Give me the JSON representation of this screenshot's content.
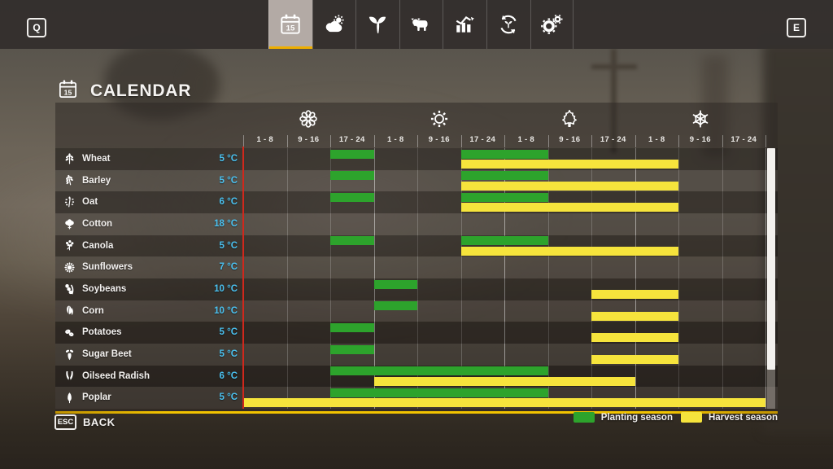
{
  "topbar": {
    "left_key": "Q",
    "right_key": "E",
    "tabs": [
      {
        "name": "calendar",
        "icon": "calendar-icon",
        "selected": true,
        "day": "15"
      },
      {
        "name": "weather",
        "icon": "weather-icon",
        "selected": false
      },
      {
        "name": "crops",
        "icon": "crops-icon",
        "selected": false
      },
      {
        "name": "animals",
        "icon": "animals-icon",
        "selected": false
      },
      {
        "name": "statistics",
        "icon": "statistics-icon",
        "selected": false
      },
      {
        "name": "rotation",
        "icon": "rotation-icon",
        "selected": false
      },
      {
        "name": "settings",
        "icon": "settings-icon",
        "selected": false
      }
    ]
  },
  "page": {
    "title": "CALENDAR",
    "title_icon": "calendar-icon",
    "title_icon_day": "15"
  },
  "calendar": {
    "seasons": [
      {
        "name": "spring",
        "icon": "spring-flower-icon"
      },
      {
        "name": "summer",
        "icon": "summer-sun-icon"
      },
      {
        "name": "autumn",
        "icon": "autumn-leaf-icon"
      },
      {
        "name": "winter",
        "icon": "winter-snowflake-icon"
      }
    ],
    "periods_per_season": [
      "1 - 8",
      "9 - 16",
      "17 - 24"
    ],
    "rows": [
      {
        "crop": "Wheat",
        "temp": "5 °C",
        "icon": "wheat-icon",
        "plant": [
          [
            3,
            3
          ],
          [
            6,
            7
          ]
        ],
        "harvest": [
          [
            6,
            10
          ]
        ]
      },
      {
        "crop": "Barley",
        "temp": "5 °C",
        "icon": "barley-icon",
        "plant": [
          [
            3,
            3
          ],
          [
            6,
            7
          ]
        ],
        "harvest": [
          [
            6,
            10
          ]
        ]
      },
      {
        "crop": "Oat",
        "temp": "6 °C",
        "icon": "oat-icon",
        "plant": [
          [
            3,
            3
          ],
          [
            6,
            7
          ]
        ],
        "harvest": [
          [
            6,
            10
          ]
        ]
      },
      {
        "crop": "Cotton",
        "temp": "18 °C",
        "icon": "cotton-icon",
        "plant": [],
        "harvest": []
      },
      {
        "crop": "Canola",
        "temp": "5 °C",
        "icon": "canola-icon",
        "plant": [
          [
            3,
            3
          ],
          [
            6,
            7
          ]
        ],
        "harvest": [
          [
            6,
            10
          ]
        ]
      },
      {
        "crop": "Sunflowers",
        "temp": "7 °C",
        "icon": "sunflower-icon",
        "plant": [],
        "harvest": []
      },
      {
        "crop": "Soybeans",
        "temp": "10 °C",
        "icon": "soybeans-icon",
        "plant": [
          [
            4,
            4
          ]
        ],
        "harvest": [
          [
            9,
            10
          ]
        ]
      },
      {
        "crop": "Corn",
        "temp": "10 °C",
        "icon": "corn-icon",
        "plant": [
          [
            4,
            4
          ]
        ],
        "harvest": [
          [
            9,
            10
          ]
        ]
      },
      {
        "crop": "Potatoes",
        "temp": "5 °C",
        "icon": "potatoes-icon",
        "plant": [
          [
            3,
            3
          ]
        ],
        "harvest": [
          [
            9,
            10
          ]
        ]
      },
      {
        "crop": "Sugar Beet",
        "temp": "5 °C",
        "icon": "sugar-beet-icon",
        "plant": [
          [
            3,
            3
          ]
        ],
        "harvest": [
          [
            9,
            10
          ]
        ]
      },
      {
        "crop": "Oilseed Radish",
        "temp": "6 °C",
        "icon": "oilseed-radish-icon",
        "plant": [
          [
            3,
            7
          ]
        ],
        "harvest": [
          [
            4,
            9
          ]
        ]
      },
      {
        "crop": "Poplar",
        "temp": "5 °C",
        "icon": "poplar-icon",
        "plant": [
          [
            3,
            7
          ]
        ],
        "harvest": [
          [
            1,
            12
          ]
        ]
      }
    ],
    "colors": {
      "planting": "#2da32c",
      "harvest": "#f6e43c",
      "temp_text": "#4ac1f0",
      "current_day_line": "#d0281c",
      "tab_underline": "#eeae00"
    }
  },
  "legend": [
    {
      "label": "Planting season",
      "color": "#2da32c"
    },
    {
      "label": "Harvest season",
      "color": "#f6e43c"
    }
  ],
  "footer": {
    "key": "ESC",
    "label": "BACK"
  }
}
